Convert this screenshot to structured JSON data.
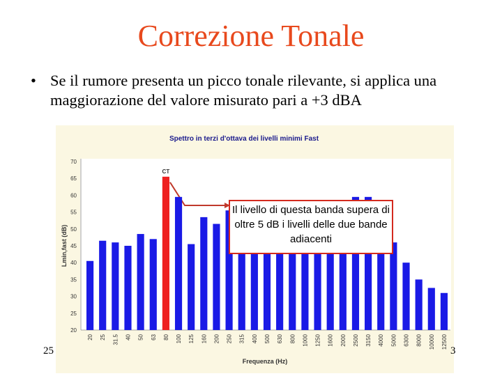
{
  "slide": {
    "title": "Correzione Tonale",
    "bullet_symbol": "•",
    "bullet_text": "Se il rumore presenta un picco tonale rilevante, si applica una maggiorazione del valore misurato pari a +3 dBA",
    "footer_left": "25",
    "footer_right": "3",
    "callout": "Il livello di questa banda supera di oltre 5 dB i livelli delle due bande adiacenti",
    "colors": {
      "title": "#e8491d",
      "callout_border": "#d42a1e",
      "bar": "#1a1ae6",
      "tonal_bar": "#ee2020",
      "arrow": "#c0392b"
    }
  },
  "chart_data": {
    "type": "bar",
    "title": "Spettro in terzi d'ottava dei livelli minimi Fast",
    "xlabel": "Frequenza (Hz)",
    "ylabel": "Lmin,fast (dB)",
    "ylim": [
      20,
      70
    ],
    "yticks": [
      20,
      25,
      30,
      35,
      40,
      45,
      50,
      55,
      60,
      65,
      70
    ],
    "categories": [
      "20",
      "25",
      "31.5",
      "40",
      "50",
      "63",
      "80",
      "100",
      "125",
      "160",
      "200",
      "250",
      "315",
      "400",
      "500",
      "630",
      "800",
      "1000",
      "1250",
      "1600",
      "2000",
      "2500",
      "3150",
      "4000",
      "5000",
      "6300",
      "8000",
      "10000",
      "12500"
    ],
    "values": [
      40.5,
      46.5,
      46.0,
      45.0,
      48.5,
      47.0,
      65.5,
      59.5,
      45.5,
      53.5,
      51.5,
      55.5,
      55.0,
      53.0,
      52.0,
      52.0,
      52.0,
      51.0,
      51.0,
      52.0,
      55.0,
      59.5,
      59.5,
      57.0,
      46.0,
      40.0,
      35.0,
      32.5,
      31.0
    ],
    "highlight": {
      "category": "80",
      "label": "CT"
    },
    "grid": false,
    "legend": "none"
  }
}
